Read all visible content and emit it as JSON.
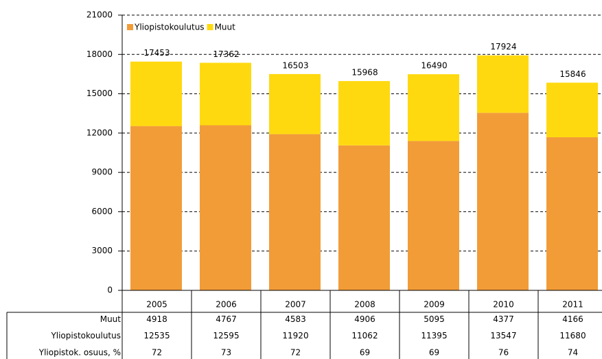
{
  "chart_data": {
    "type": "stacked_bar",
    "categories": [
      "2005",
      "2006",
      "2007",
      "2008",
      "2009",
      "2010",
      "2011"
    ],
    "series": [
      {
        "name": "Yliopistokoulutus",
        "color": "#f29c38",
        "values": [
          12535,
          12595,
          11920,
          11062,
          11395,
          13547,
          11680
        ]
      },
      {
        "name": "Muut",
        "color": "#ffd90f",
        "values": [
          4918,
          4767,
          4583,
          4906,
          5095,
          4377,
          4166
        ]
      }
    ],
    "totals": [
      17453,
      17362,
      16503,
      15968,
      16490,
      17924,
      15846
    ],
    "share_row": {
      "label": "Yliopistok. osuus, %",
      "values": [
        72,
        73,
        72,
        69,
        69,
        76,
        74
      ]
    },
    "ylim": [
      0,
      21000
    ],
    "yticks": [
      0,
      3000,
      6000,
      9000,
      12000,
      15000,
      18000,
      21000
    ],
    "grid": true,
    "legend": "top-left"
  }
}
